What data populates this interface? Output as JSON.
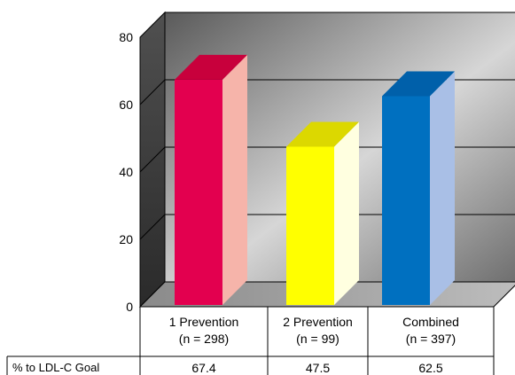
{
  "chart_data": {
    "type": "bar",
    "title": "",
    "xlabel": "",
    "ylabel": "",
    "ylim": [
      0,
      80
    ],
    "yticks": [
      0,
      20,
      40,
      60,
      80
    ],
    "grid": true,
    "categories": [
      {
        "line1": "1 Prevention",
        "line2": "(n = 298)"
      },
      {
        "line1": "2 Prevention",
        "line2": "(n = 99)"
      },
      {
        "line1": "Combined",
        "line2": "(n = 397)"
      }
    ],
    "values": [
      67.4,
      47.5,
      62.5
    ],
    "bar_colors": [
      {
        "front": "#e3004f",
        "side": "#f6b4aa",
        "top": "#c8003c"
      },
      {
        "front": "#ffff00",
        "side": "#ffffe0",
        "top": "#dcd800"
      },
      {
        "front": "#0070c0",
        "side": "#a9bfe6",
        "top": "#0060aa"
      }
    ],
    "table": {
      "row_label": "% to LDL-C Goal",
      "cells": [
        "67.4",
        "47.5",
        "62.5"
      ]
    }
  }
}
